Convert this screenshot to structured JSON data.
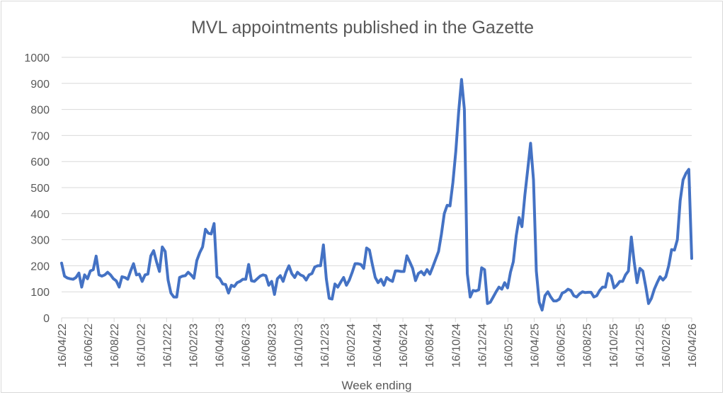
{
  "chart_data": {
    "type": "line",
    "title": "MVL appointments published in the Gazette",
    "xlabel": "Week ending",
    "ylabel": "",
    "ylim": [
      0,
      1000
    ],
    "yticks": [
      0,
      100,
      200,
      300,
      400,
      500,
      600,
      700,
      800,
      900,
      1000
    ],
    "grid": true,
    "legend": "none",
    "line_color": "#4472C4",
    "x_tick_labels": [
      "16/04/22",
      "16/06/22",
      "16/08/22",
      "16/10/22",
      "16/12/22",
      "16/02/23",
      "16/04/23",
      "16/06/23",
      "16/08/23",
      "16/10/23",
      "16/12/23",
      "16/02/24",
      "16/04/24",
      "16/06/24",
      "16/08/24",
      "16/10/24",
      "16/12/24",
      "16/02/25",
      "16/04/25",
      "16/06/25",
      "16/08/25",
      "16/10/25",
      "16/12/25",
      "16/02/26",
      "16/04/26"
    ],
    "series": [
      {
        "name": "MVL appointments",
        "values": [
          210,
          160,
          153,
          150,
          148,
          155,
          172,
          118,
          165,
          150,
          180,
          185,
          237,
          165,
          160,
          165,
          175,
          165,
          150,
          142,
          118,
          158,
          155,
          148,
          180,
          208,
          165,
          168,
          140,
          165,
          168,
          238,
          258,
          215,
          178,
          272,
          255,
          145,
          95,
          80,
          80,
          155,
          160,
          162,
          175,
          165,
          152,
          220,
          250,
          272,
          340,
          325,
          322,
          362,
          158,
          150,
          130,
          128,
          95,
          125,
          120,
          135,
          140,
          148,
          148,
          205,
          142,
          140,
          150,
          160,
          165,
          162,
          125,
          140,
          90,
          150,
          162,
          140,
          175,
          200,
          170,
          155,
          175,
          165,
          160,
          145,
          165,
          170,
          195,
          200,
          200,
          280,
          150,
          75,
          72,
          130,
          118,
          137,
          155,
          125,
          145,
          175,
          208,
          208,
          205,
          190,
          268,
          260,
          205,
          155,
          135,
          148,
          125,
          155,
          145,
          140,
          180,
          180,
          178,
          178,
          238,
          215,
          190,
          143,
          170,
          178,
          165,
          185,
          168,
          195,
          225,
          255,
          320,
          400,
          432,
          430,
          520,
          640,
          790,
          915,
          800,
          170,
          80,
          105,
          103,
          108,
          192,
          185,
          55,
          60,
          80,
          100,
          118,
          110,
          135,
          115,
          175,
          215,
          315,
          385,
          350,
          470,
          570,
          670,
          530,
          180,
          60,
          30,
          85,
          100,
          80,
          65,
          65,
          72,
          95,
          100,
          110,
          105,
          85,
          80,
          92,
          100,
          97,
          98,
          98,
          80,
          85,
          105,
          118,
          118,
          170,
          160,
          115,
          125,
          140,
          140,
          165,
          180,
          310,
          215,
          135,
          190,
          180,
          120,
          55,
          75,
          110,
          135,
          158,
          145,
          158,
          200,
          262,
          260,
          300,
          450,
          530,
          555,
          570,
          228
        ]
      }
    ]
  }
}
